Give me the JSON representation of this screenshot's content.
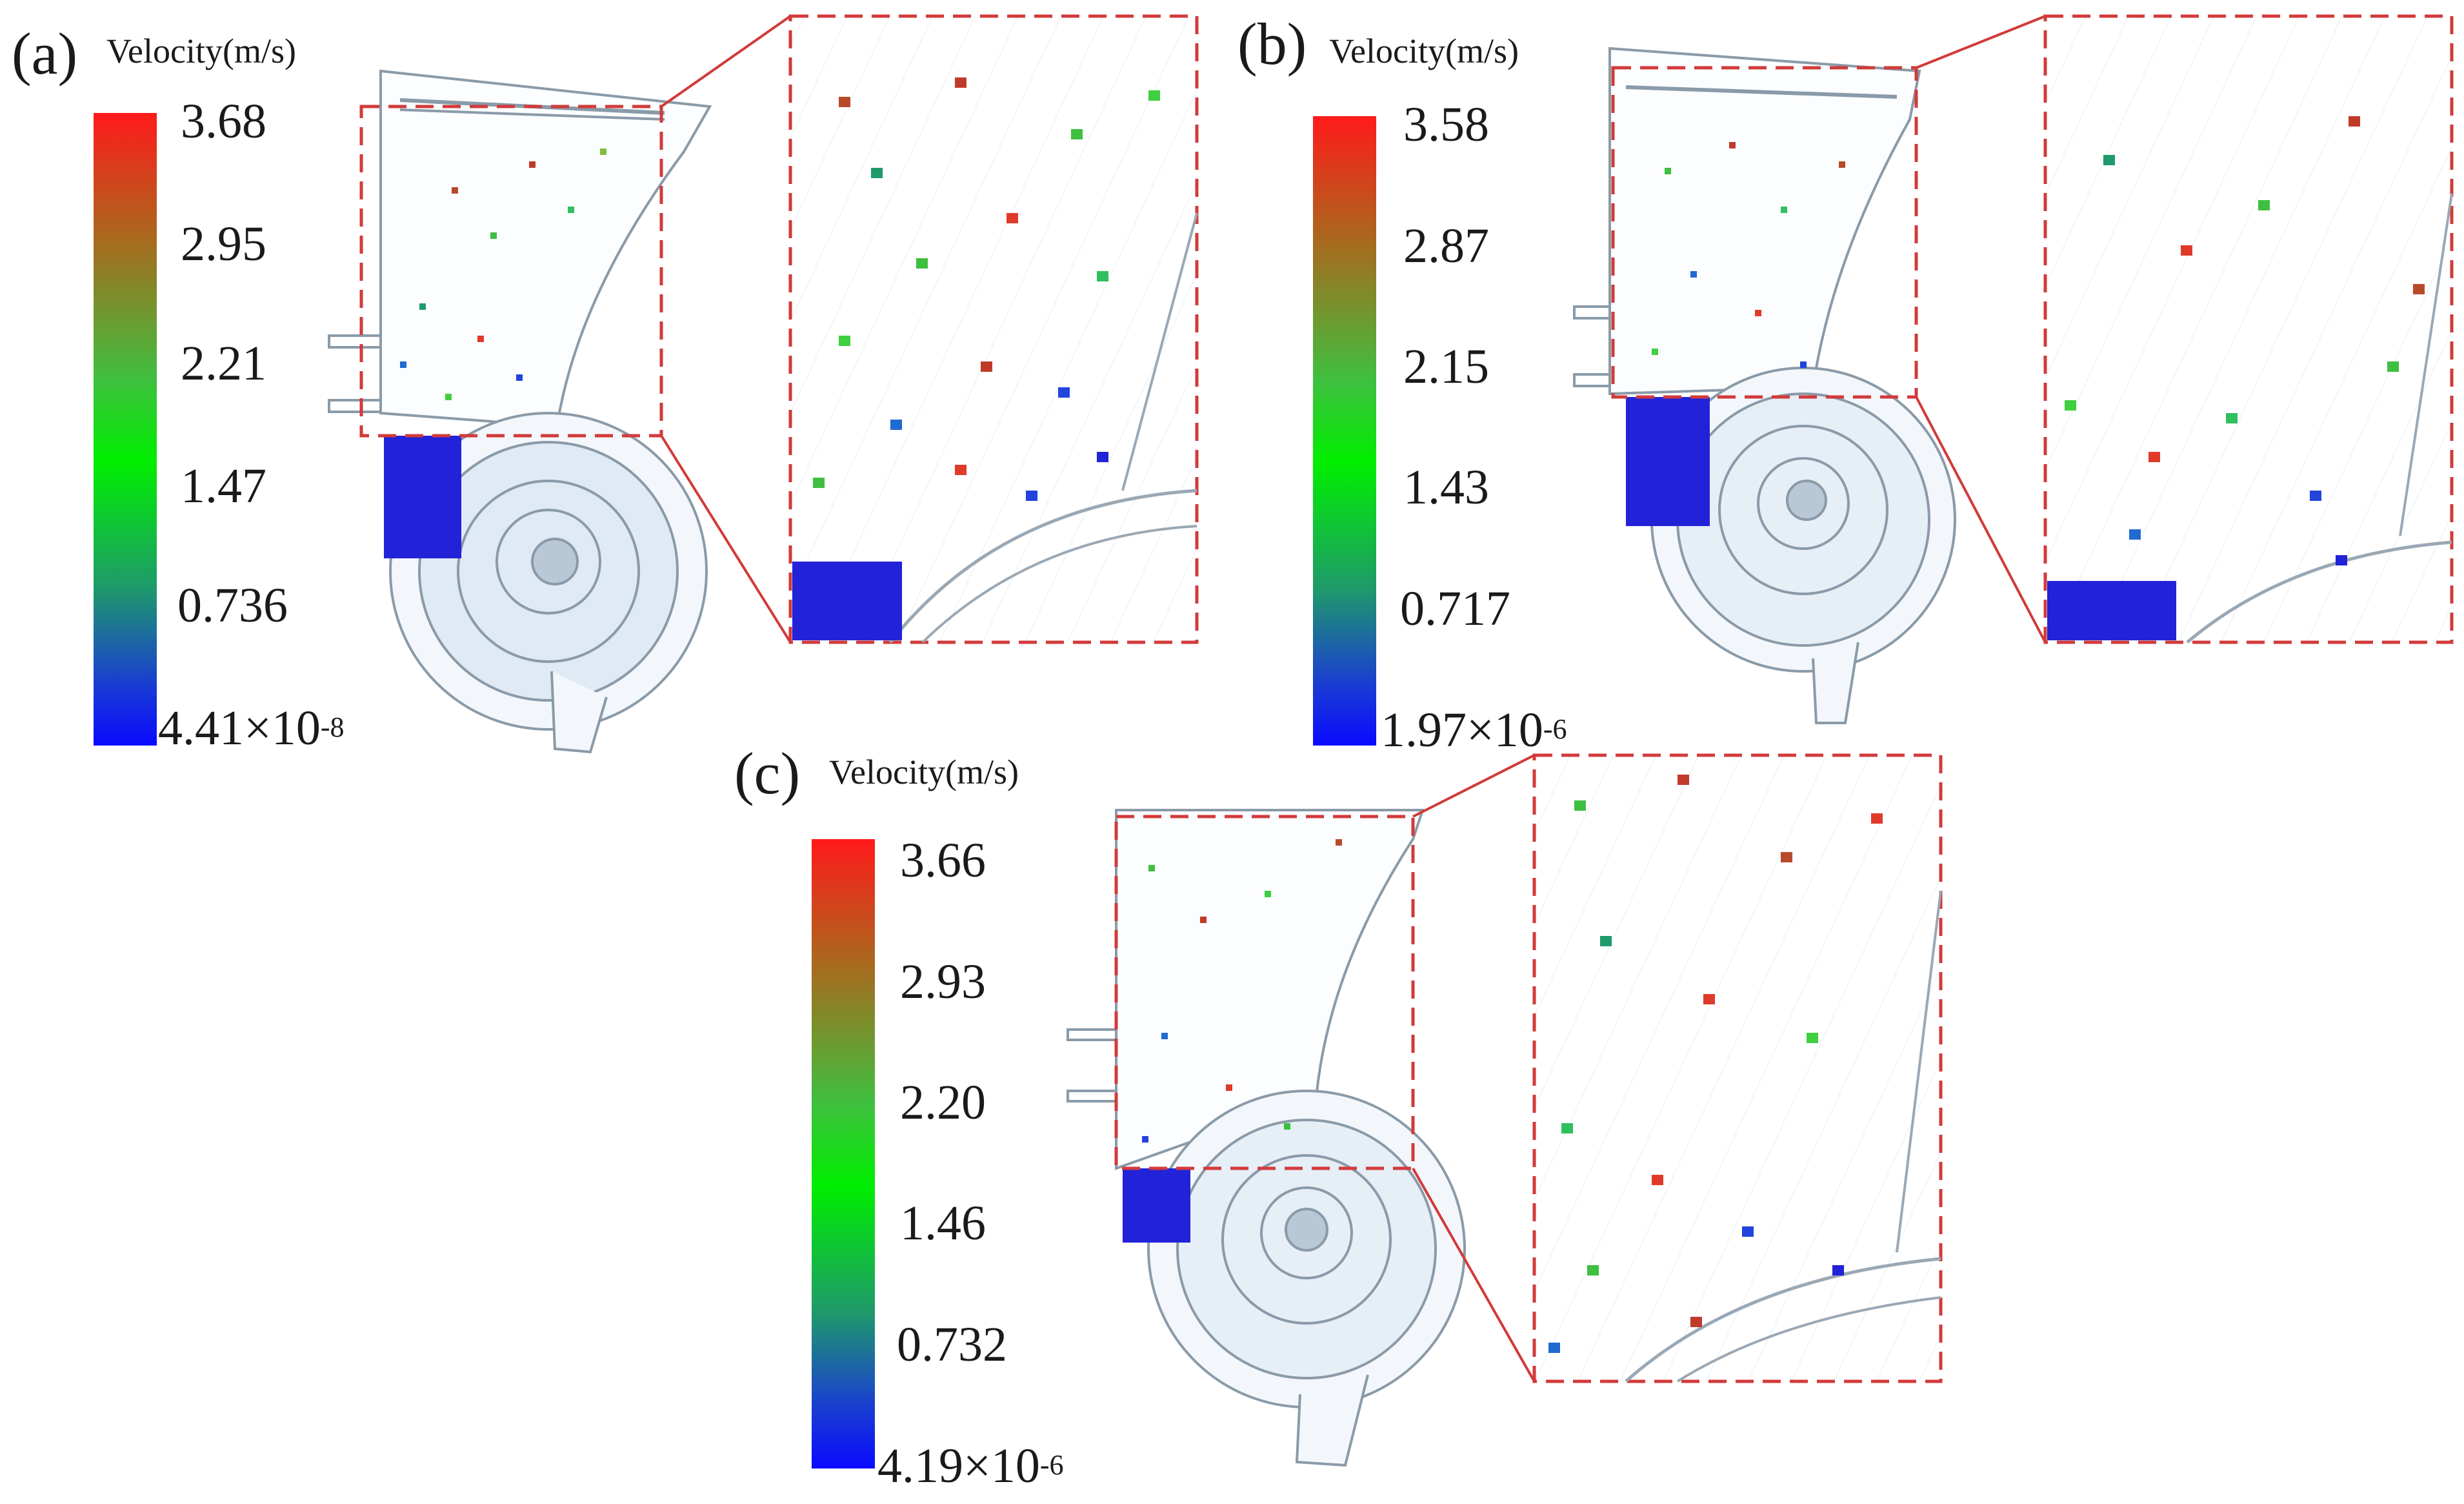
{
  "panels": [
    {
      "id": "a",
      "label": "(a)",
      "colorbar_title": "Velocity(m/s)",
      "ticks": [
        "3.68",
        "2.95",
        "2.21",
        "1.47",
        "0.736"
      ],
      "min_mantissa": "4.41×10",
      "min_exponent": "-8"
    },
    {
      "id": "b",
      "label": "(b)",
      "colorbar_title": "Velocity(m/s)",
      "ticks": [
        "3.58",
        "2.87",
        "2.15",
        "1.43",
        "0.717"
      ],
      "min_mantissa": "1.97×10",
      "min_exponent": "-6"
    },
    {
      "id": "c",
      "label": "(c)",
      "colorbar_title": "Velocity(m/s)",
      "ticks": [
        "3.66",
        "2.93",
        "2.20",
        "1.46",
        "0.732"
      ],
      "min_mantissa": "4.19×10",
      "min_exponent": "-6"
    }
  ],
  "colors": {
    "max": "#ff1a1a",
    "mid": "#00ee00",
    "min": "#0a0aff",
    "zoom_frame": "#d23a3a",
    "device_outline": "#8a9aa8"
  }
}
